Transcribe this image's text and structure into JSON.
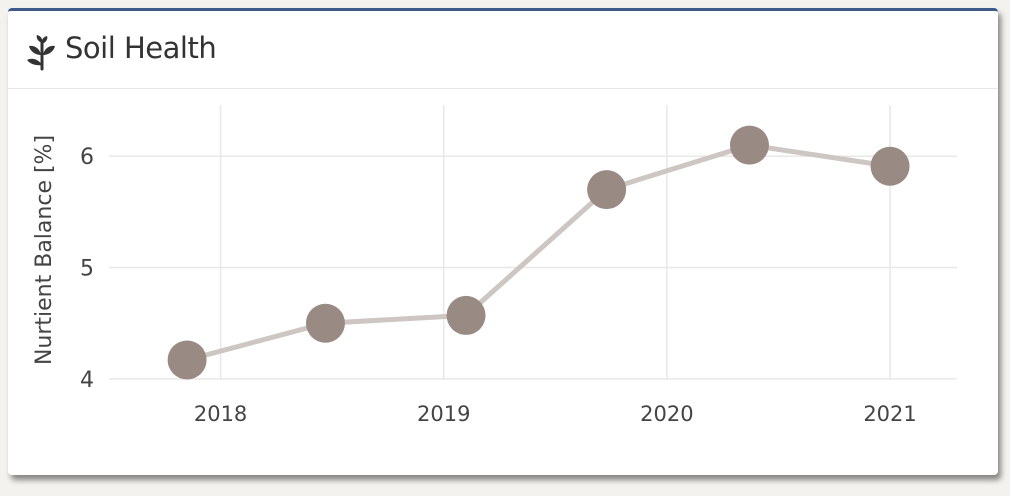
{
  "panel": {
    "title": "Soil Health",
    "icon": "sprout-icon",
    "accent_color": "#3d5a8a"
  },
  "chart_data": {
    "type": "line",
    "title": "",
    "xlabel": "",
    "ylabel": "Nurtient Balance [%]",
    "x_tick_labels": [
      "2018",
      "2019",
      "2020",
      "2021"
    ],
    "x_tick_values": [
      2018.0,
      2019.0,
      2020.0,
      2021.0
    ],
    "y_tick_labels": [
      "4",
      "5",
      "6"
    ],
    "y_tick_values": [
      4,
      5,
      6
    ],
    "xlim": [
      2017.5,
      2021.3
    ],
    "ylim": [
      3.99,
      6.46
    ],
    "grid": true,
    "marker_color": "#9a8a84",
    "line_color": "#cdc6c2",
    "series": [
      {
        "x": [
          2017.85,
          2018.47,
          2019.1,
          2019.73,
          2020.37,
          2021.0
        ],
        "values": [
          4.17,
          4.5,
          4.57,
          5.7,
          6.1,
          5.91
        ]
      }
    ]
  }
}
